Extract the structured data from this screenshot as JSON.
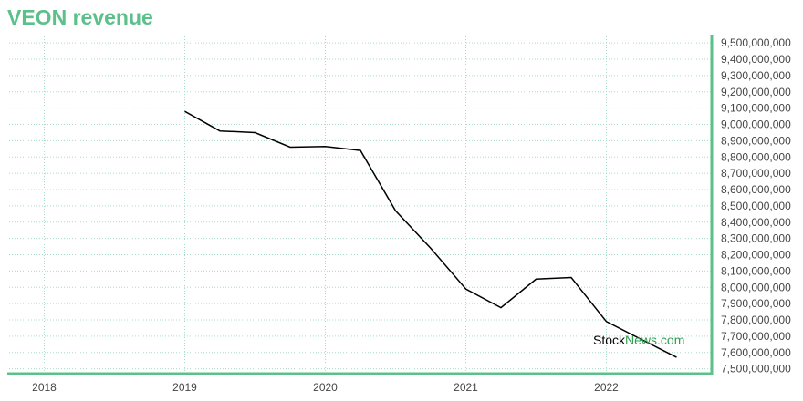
{
  "title": "VEON revenue",
  "watermark": {
    "part1": "Stock",
    "part2": "News",
    "part3": ".com"
  },
  "colors": {
    "title": "#5cc08a",
    "axis": "#5cc08a",
    "grid": "#a8dcc8",
    "line": "#000000",
    "watermark_accent": "#2e9e4f"
  },
  "chart_data": {
    "type": "line",
    "title": "VEON revenue",
    "xlabel": "",
    "ylabel": "",
    "x_ticks": [
      "2018",
      "2019",
      "2020",
      "2021",
      "2022"
    ],
    "y_ticks": [
      "7,500,000,000",
      "7,600,000,000",
      "7,700,000,000",
      "7,800,000,000",
      "7,900,000,000",
      "8,000,000,000",
      "8,100,000,000",
      "8,200,000,000",
      "8,300,000,000",
      "8,400,000,000",
      "8,500,000,000",
      "8,600,000,000",
      "8,700,000,000",
      "8,800,000,000",
      "8,900,000,000",
      "9,000,000,000",
      "9,100,000,000",
      "9,200,000,000",
      "9,300,000,000",
      "9,400,000,000",
      "9,500,000,000"
    ],
    "xlim": [
      "2017-10",
      "2022-10"
    ],
    "ylim": [
      7470000000,
      9540000000
    ],
    "grid": true,
    "y_axis_position": "right",
    "series": [
      {
        "x": [
          "2019-01",
          "2019-04",
          "2019-07",
          "2019-10",
          "2020-01",
          "2020-04",
          "2020-07",
          "2020-10",
          "2021-01",
          "2021-04",
          "2021-07",
          "2021-10",
          "2022-01",
          "2022-04",
          "2022-07"
        ],
        "values": [
          9080000000,
          8960000000,
          8950000000,
          8860000000,
          8865000000,
          8840000000,
          8470000000,
          8240000000,
          7990000000,
          7875000000,
          8050000000,
          8060000000,
          7790000000,
          7680000000,
          7570000000
        ]
      }
    ]
  }
}
